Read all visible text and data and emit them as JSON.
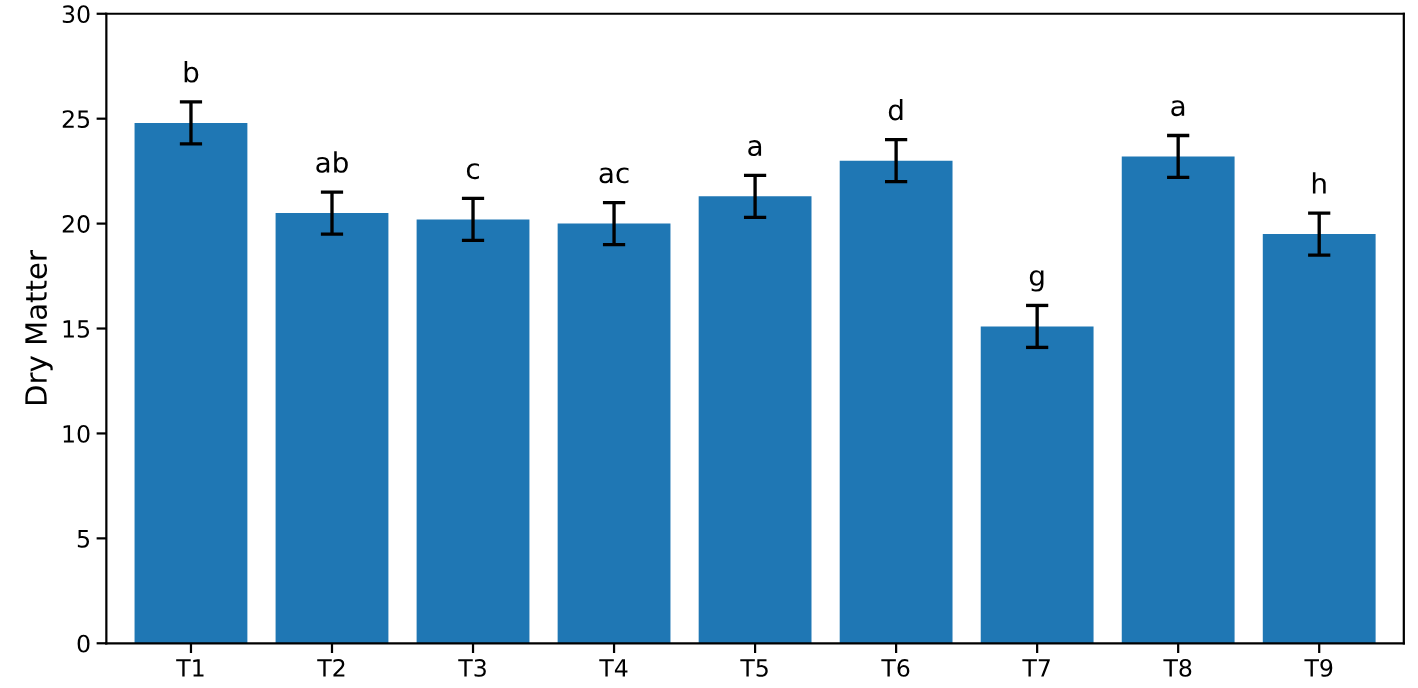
{
  "chart_data": {
    "type": "bar",
    "ylabel": "Dry Matter",
    "categories": [
      "T1",
      "T2",
      "T3",
      "T4",
      "T5",
      "T6",
      "T7",
      "T8",
      "T9"
    ],
    "values": [
      24.8,
      20.5,
      20.2,
      20.0,
      21.3,
      23.0,
      15.1,
      23.2,
      19.5
    ],
    "errors": [
      1.0,
      1.0,
      1.0,
      1.0,
      1.0,
      1.0,
      1.0,
      1.0,
      1.0
    ],
    "color": "#1f77b4",
    "ylim": [
      0,
      30
    ],
    "yticks": [
      0,
      5,
      10,
      15,
      20,
      25,
      30
    ],
    "grid": false,
    "annotations": [
      {
        "text": "b",
        "x": "T1",
        "y": 24.8
      },
      {
        "text": "ab",
        "x": "T2",
        "y": 20.5
      },
      {
        "text": "c",
        "x": "T3",
        "y": 20.2
      },
      {
        "text": "ac",
        "x": "T4",
        "y": 20.0
      },
      {
        "text": "a",
        "x": "T5",
        "y": 21.3
      },
      {
        "text": "d",
        "x": "T6",
        "y": 23.0
      },
      {
        "text": "g",
        "x": "T7",
        "y": 15.1
      },
      {
        "text": "a",
        "x": "T8",
        "y": 23.2
      },
      {
        "text": "h",
        "x": "T9",
        "y": 19.5
      }
    ]
  }
}
